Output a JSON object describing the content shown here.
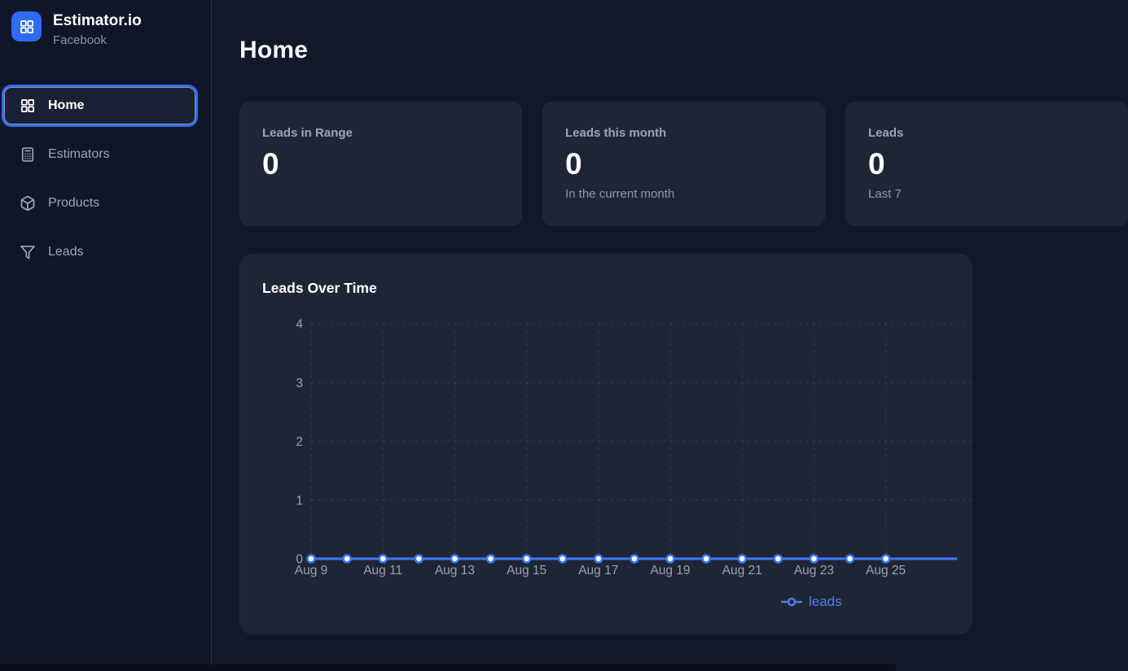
{
  "brand": {
    "name": "Estimator.io",
    "subtitle": "Facebook"
  },
  "sidebar": {
    "items": [
      {
        "label": "Home",
        "icon": "grid-icon",
        "active": true
      },
      {
        "label": "Estimators",
        "icon": "calculator-icon",
        "active": false
      },
      {
        "label": "Products",
        "icon": "package-icon",
        "active": false
      },
      {
        "label": "Leads",
        "icon": "funnel-icon",
        "active": false
      }
    ]
  },
  "page": {
    "title": "Home"
  },
  "stat_cards": [
    {
      "label": "Leads in Range",
      "value": "0",
      "subtitle": ""
    },
    {
      "label": "Leads this month",
      "value": "0",
      "subtitle": "In the current month"
    },
    {
      "label": "Leads",
      "value": "0",
      "subtitle": "Last 7"
    }
  ],
  "chart_panel": {
    "title": "Leads Over Time",
    "legend_label": "leads"
  },
  "chart_data": {
    "type": "line",
    "title": "Leads Over Time",
    "x": [
      "Aug 9",
      "Aug 10",
      "Aug 11",
      "Aug 12",
      "Aug 13",
      "Aug 14",
      "Aug 15",
      "Aug 16",
      "Aug 17",
      "Aug 18",
      "Aug 19",
      "Aug 20",
      "Aug 21",
      "Aug 22",
      "Aug 23",
      "Aug 24",
      "Aug 25"
    ],
    "series": [
      {
        "name": "leads",
        "values": [
          0,
          0,
          0,
          0,
          0,
          0,
          0,
          0,
          0,
          0,
          0,
          0,
          0,
          0,
          0,
          0,
          0
        ]
      }
    ],
    "ylim": [
      0,
      4
    ],
    "yticks": [
      0,
      1,
      2,
      3,
      4
    ],
    "xtick_every": 2,
    "grid": "dashed",
    "legend_position": "bottom-right",
    "line_color": "#3b78f6"
  },
  "colors": {
    "accent_blue": "#2e6bf2",
    "line_blue": "#3b78f6",
    "legend_blue": "#4e7cf0",
    "card_bg": "#1e2636",
    "sidebar_bg": "#101527",
    "page_bg": "#121829"
  }
}
